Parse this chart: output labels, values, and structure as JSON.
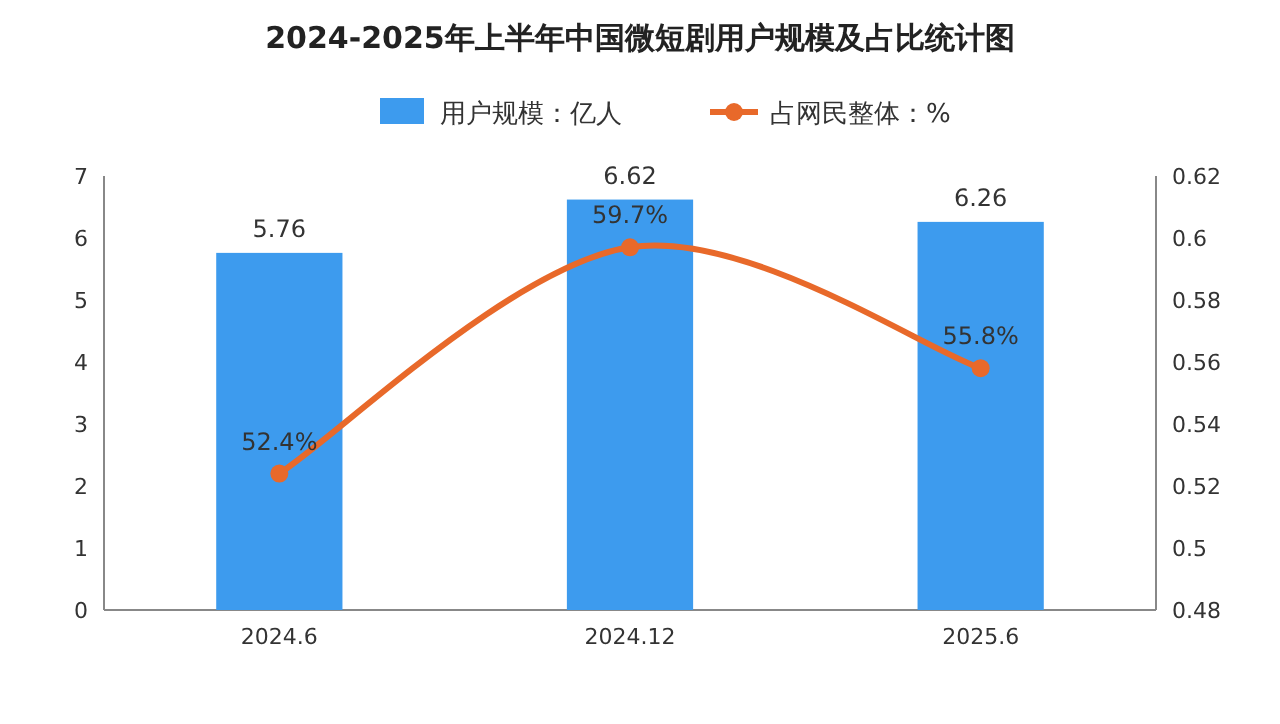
{
  "chart_data": {
    "type": "bar",
    "title": "2024-2025年上半年中国微短剧用户规模及占比统计图",
    "categories": [
      "2024.6",
      "2024.12",
      "2025.6"
    ],
    "series": [
      {
        "name": "用户规模：亿人",
        "color": "#3d9bee",
        "values": [
          5.76,
          6.62,
          6.26
        ],
        "value_labels": [
          "5.76",
          "6.62",
          "6.26"
        ]
      },
      {
        "name": "占网民整体：%",
        "type": "line",
        "axis": "y2",
        "color": "#e8692a",
        "marker": "circle",
        "values": [
          0.524,
          0.597,
          0.558
        ],
        "value_labels": [
          "52.4%",
          "59.7%",
          "55.8%"
        ]
      }
    ],
    "ylim": [
      0,
      7
    ],
    "yticks": [
      0,
      1,
      2,
      3,
      4,
      5,
      6,
      7
    ],
    "y2lim": [
      0.48,
      0.62
    ],
    "y2ticks": [
      0.48,
      0.5,
      0.52,
      0.54,
      0.56,
      0.58,
      0.6,
      0.62
    ],
    "legend": "top"
  }
}
